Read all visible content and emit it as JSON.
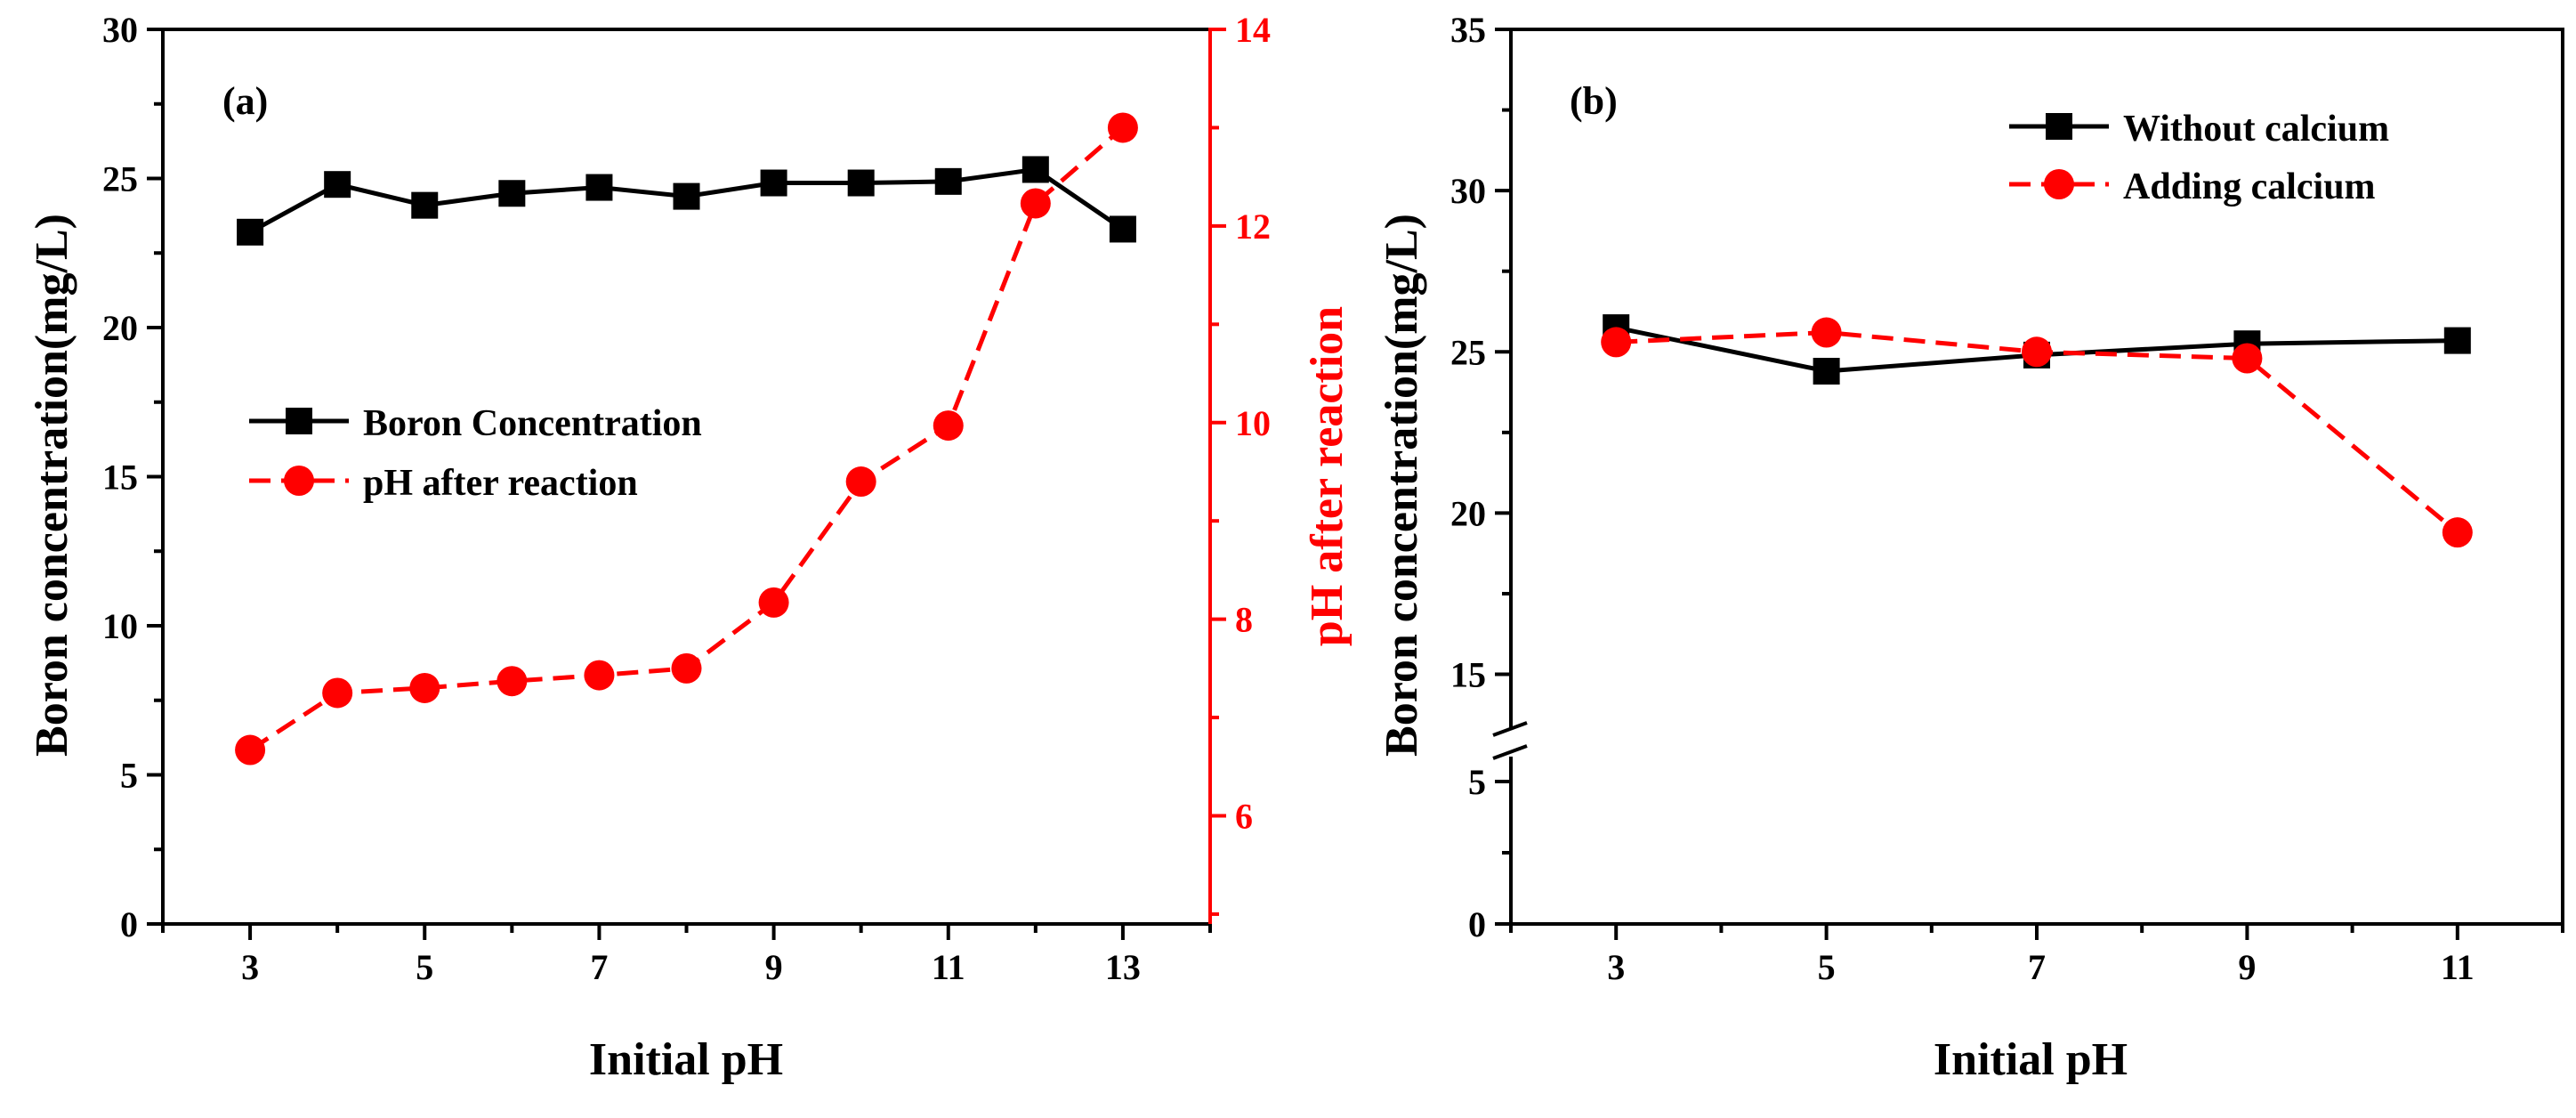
{
  "chart_data": [
    {
      "panel_label": "(a)",
      "type": "line",
      "categories": [
        3,
        4,
        5,
        6,
        7,
        8,
        9,
        10,
        11,
        12,
        13
      ],
      "xlabel": "Initial pH",
      "x_ticks": [
        3,
        5,
        7,
        9,
        11,
        13
      ],
      "xlim": [
        2,
        14
      ],
      "ylabel": "Boron concentration(mg/L)",
      "ylim": [
        0,
        30
      ],
      "y_ticks": [
        0,
        5,
        10,
        15,
        20,
        25,
        30
      ],
      "ylabel_right": "pH after reaction",
      "ylim_right": [
        4.9,
        14
      ],
      "y_ticks_right": [
        6,
        8,
        10,
        12,
        14
      ],
      "legend_position": "middle-left",
      "series": [
        {
          "name": "Boron Concentration",
          "axis": "left",
          "color": "#000000",
          "marker": "square",
          "line": "solid",
          "values": [
            23.2,
            24.8,
            24.1,
            24.5,
            24.7,
            24.4,
            24.85,
            24.85,
            24.9,
            25.3,
            23.3
          ]
        },
        {
          "name": "pH after reaction",
          "axis": "right",
          "color": "#ff0000",
          "marker": "circle",
          "line": "dashed",
          "values": [
            6.67,
            7.25,
            7.3,
            7.37,
            7.43,
            7.5,
            8.17,
            9.4,
            9.97,
            12.23,
            13.0
          ]
        }
      ]
    },
    {
      "panel_label": "(b)",
      "type": "line",
      "categories": [
        3,
        5,
        7,
        9,
        11
      ],
      "xlabel": "Initial pH",
      "x_ticks": [
        3,
        5,
        7,
        9,
        11
      ],
      "xlim": [
        2,
        12
      ],
      "ylabel": "Boron concentration(mg/L)",
      "ylim": [
        0,
        35
      ],
      "y_ticks": [
        0,
        5,
        15,
        20,
        25,
        30,
        35
      ],
      "y_axis_break": [
        6.5,
        13
      ],
      "legend_position": "top-right",
      "series": [
        {
          "name": "Without calcium",
          "color": "#000000",
          "marker": "square",
          "line": "solid",
          "values": [
            25.75,
            24.4,
            24.9,
            25.25,
            25.35
          ]
        },
        {
          "name": "Adding calcium",
          "color": "#ff0000",
          "marker": "circle",
          "line": "dashed",
          "values": [
            25.3,
            25.6,
            25.0,
            24.8,
            19.4
          ]
        }
      ]
    }
  ]
}
